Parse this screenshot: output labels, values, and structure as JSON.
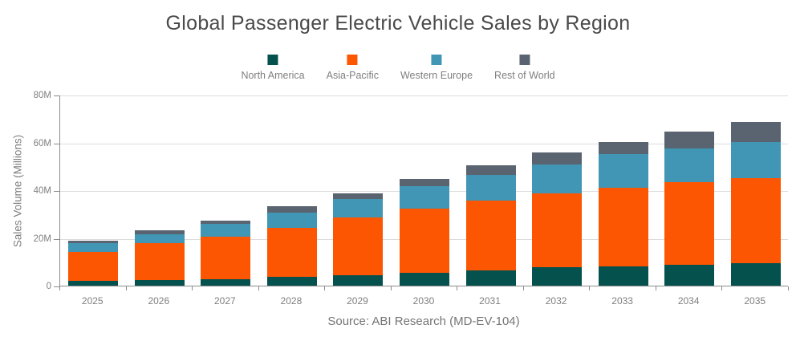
{
  "title": "Global Passenger Electric Vehicle Sales by Region",
  "y_axis_label": "Sales Volume (Millions)",
  "source": "Source: ABI Research (MD-EV-104)",
  "colors": {
    "north_america": "#05514e",
    "asia_pacific": "#fc5602",
    "western_europe": "#4096b4",
    "rest_of_world": "#5a6470",
    "gridline": "#dcdcdc",
    "axis_line": "#8c8c8c",
    "title_text": "#4a4a4a",
    "axis_text": "#7f7f7f"
  },
  "chart_data": {
    "type": "bar",
    "stacked": true,
    "title": "Global Passenger Electric Vehicle Sales by Region",
    "xlabel": "",
    "ylabel": "Sales Volume (Millions)",
    "ylim": [
      0,
      80
    ],
    "y_ticks": [
      0,
      20,
      40,
      60,
      80
    ],
    "y_tick_labels": [
      "0",
      "20M",
      "40M",
      "60M",
      "80M"
    ],
    "grid": "horizontal",
    "legend_position": "top",
    "unit": "millions of vehicles",
    "categories": [
      "2025",
      "2026",
      "2027",
      "2028",
      "2029",
      "2030",
      "2031",
      "2032",
      "2033",
      "2034",
      "2035"
    ],
    "series": [
      {
        "name": "North America",
        "color": "#05514e",
        "values": [
          1.9,
          2.4,
          2.8,
          3.7,
          4.4,
          5.5,
          6.5,
          7.6,
          8.2,
          8.9,
          9.5
        ]
      },
      {
        "name": "Asia-Pacific",
        "color": "#fc5602",
        "values": [
          12.3,
          15.3,
          17.7,
          20.5,
          24.3,
          26.8,
          29.3,
          31.0,
          32.8,
          34.5,
          35.7
        ]
      },
      {
        "name": "Western Europe",
        "color": "#4096b4",
        "values": [
          3.6,
          3.7,
          5.4,
          6.5,
          7.5,
          9.5,
          10.7,
          12.2,
          14.0,
          14.0,
          15.0
        ]
      },
      {
        "name": "Rest of World",
        "color": "#5a6470",
        "values": [
          1.1,
          1.7,
          1.5,
          2.5,
          2.6,
          2.8,
          3.8,
          4.9,
          5.3,
          7.0,
          8.4
        ]
      }
    ],
    "totals": [
      18.9,
      23.1,
      27.4,
      33.2,
      38.8,
      44.6,
      50.3,
      55.7,
      60.3,
      64.4,
      68.6
    ]
  }
}
